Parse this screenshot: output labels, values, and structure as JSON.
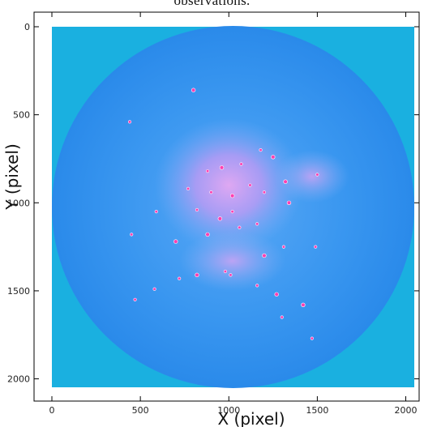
{
  "caption": "observations.",
  "chart_data": {
    "type": "heatmap",
    "xlabel": "X (pixel)",
    "ylabel": "Y (pixel)",
    "xlim": [
      0,
      2048
    ],
    "ylim": [
      2048,
      0
    ],
    "xticks": [
      0,
      500,
      1000,
      1500,
      2000
    ],
    "yticks": [
      0,
      500,
      1000,
      1500,
      2000
    ],
    "grid": false,
    "colors": {
      "background_field": "#1ab0e0",
      "disk": "#2a8ff0",
      "diffuse_glow": "#c88ef0",
      "hot_spot": "#ff3fb0"
    }
  }
}
